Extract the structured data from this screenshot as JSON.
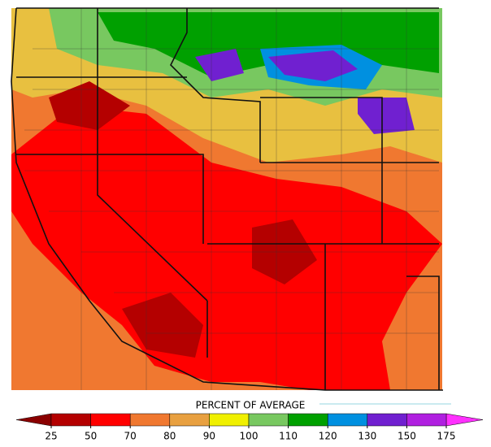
{
  "legend": {
    "title": "PERCENT OF AVERAGE",
    "ticks": [
      25,
      50,
      70,
      80,
      90,
      100,
      110,
      120,
      130,
      150,
      175
    ],
    "colors": [
      "#b40000",
      "#ff0000",
      "#f07830",
      "#e8a040",
      "#f0f000",
      "#78c860",
      "#00a000",
      "#0090e0",
      "#7020d0",
      "#b020e0"
    ],
    "low_color": "#8a0000",
    "high_color": "#ff30ff"
  }
}
